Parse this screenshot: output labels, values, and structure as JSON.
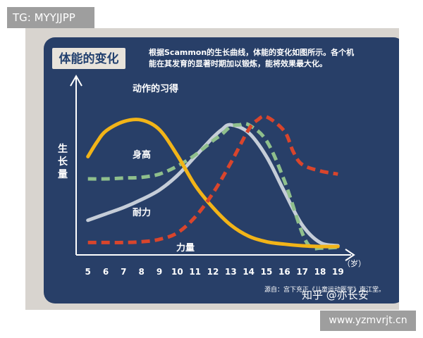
{
  "watermark_top": "TG: MYYJJPP",
  "watermark_bottom": "www.yzmvrjt.cn",
  "chart_data": {
    "type": "line",
    "title": "体能的变化",
    "description_line1": "根据Scammon的生长曲线，体能的变化如图所示。各个机",
    "description_line2": "能在其发育的显著时期加以锻炼，能将效果最大化。",
    "ylabel": "生长量",
    "x_unit": "（岁）",
    "xticks": [
      5,
      6,
      7,
      8,
      9,
      10,
      11,
      12,
      13,
      14,
      15,
      16,
      17,
      18,
      19
    ],
    "xlim": [
      4.5,
      19.5
    ],
    "ylim": [
      0,
      100
    ],
    "source": "源自：宫下充正《儿童运动医学》南江堂。",
    "credit": "知乎 @亦长安",
    "series": [
      {
        "name": "动作的习得",
        "color": "#f2b418",
        "dashed": false,
        "points": [
          [
            5,
            60
          ],
          [
            5.5,
            69
          ],
          [
            6,
            76
          ],
          [
            7,
            82
          ],
          [
            8,
            83
          ],
          [
            9,
            77
          ],
          [
            10,
            61
          ],
          [
            11,
            42
          ],
          [
            12,
            28
          ],
          [
            13,
            17
          ],
          [
            14,
            10
          ],
          [
            15,
            6.5
          ],
          [
            16,
            5
          ],
          [
            17,
            4
          ],
          [
            18,
            3.5
          ],
          [
            19,
            3.5
          ]
        ]
      },
      {
        "name": "身高",
        "color": "#8fbf8c",
        "dashed": true,
        "points": [
          [
            5,
            46
          ],
          [
            6,
            46
          ],
          [
            7,
            46.5
          ],
          [
            8,
            47
          ],
          [
            9,
            49
          ],
          [
            10,
            54
          ],
          [
            11,
            61
          ],
          [
            12,
            70
          ],
          [
            12.5,
            74
          ],
          [
            13,
            79
          ],
          [
            13.5,
            80
          ],
          [
            14,
            80
          ],
          [
            15,
            70
          ],
          [
            16,
            45
          ],
          [
            17,
            12
          ],
          [
            17.5,
            3
          ],
          [
            18,
            2.5
          ],
          [
            19,
            3
          ]
        ]
      },
      {
        "name": "耐力",
        "color": "#c5cdd8",
        "dashed": false,
        "points": [
          [
            5,
            20
          ],
          [
            6,
            24
          ],
          [
            7,
            28
          ],
          [
            8,
            33
          ],
          [
            9,
            39
          ],
          [
            10,
            48
          ],
          [
            11,
            60
          ],
          [
            12,
            72
          ],
          [
            12.5,
            77
          ],
          [
            13,
            80
          ],
          [
            14,
            75
          ],
          [
            15,
            60
          ],
          [
            16,
            38
          ],
          [
            17,
            17
          ],
          [
            18,
            6
          ],
          [
            19,
            4
          ]
        ]
      },
      {
        "name": "力量",
        "color": "#d9452c",
        "dashed": true,
        "points": [
          [
            5,
            6
          ],
          [
            6,
            6
          ],
          [
            7,
            6
          ],
          [
            8,
            6.5
          ],
          [
            9,
            8
          ],
          [
            10,
            12
          ],
          [
            11,
            22
          ],
          [
            12,
            37
          ],
          [
            13,
            56
          ],
          [
            14,
            77
          ],
          [
            14.5,
            83
          ],
          [
            15,
            85
          ],
          [
            16,
            76
          ],
          [
            16.5,
            63
          ],
          [
            17,
            55
          ],
          [
            18,
            51
          ],
          [
            19,
            49
          ]
        ]
      }
    ]
  }
}
